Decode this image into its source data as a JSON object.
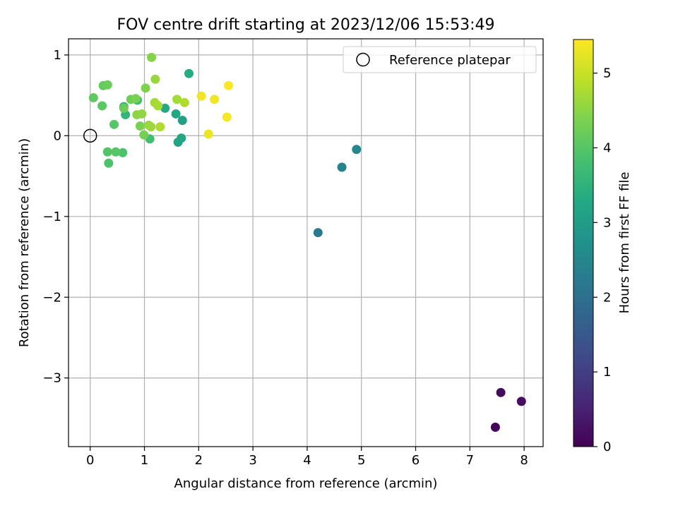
{
  "chart_data": {
    "type": "scatter",
    "title": "FOV centre drift starting at 2023/12/06 15:53:49",
    "xlabel": "Angular distance from reference (arcmin)",
    "ylabel": "Rotation from reference (arcmin)",
    "xlim": [
      -0.4,
      8.35
    ],
    "ylim": [
      -3.85,
      1.2
    ],
    "xticks": [
      0,
      1,
      2,
      3,
      4,
      5,
      6,
      7,
      8
    ],
    "yticks": [
      1,
      0,
      -1,
      -2,
      -3
    ],
    "xtick_labels": [
      "0",
      "1",
      "2",
      "3",
      "4",
      "5",
      "6",
      "7",
      "8"
    ],
    "ytick_labels": [
      "1",
      "0",
      "−1",
      "−2",
      "−3"
    ],
    "grid": true,
    "legend": {
      "position": "top-right",
      "entries": [
        "Reference platepar"
      ]
    },
    "reference_point": {
      "x": 0,
      "y": 0
    },
    "colorbar": {
      "label": "Hours from first FF file",
      "colormap": "viridis",
      "range": [
        0,
        5.45
      ],
      "ticks": [
        0,
        1,
        2,
        3,
        4,
        5
      ],
      "tick_labels": [
        "0",
        "1",
        "2",
        "3",
        "4",
        "5"
      ]
    },
    "points": [
      {
        "x": 7.47,
        "y": -3.61,
        "c": 0.1
      },
      {
        "x": 7.57,
        "y": -3.18,
        "c": 0.15
      },
      {
        "x": 7.95,
        "y": -3.29,
        "c": 0.2
      },
      {
        "x": 4.2,
        "y": -1.2,
        "c": 2.2
      },
      {
        "x": 4.64,
        "y": -0.39,
        "c": 2.4
      },
      {
        "x": 4.91,
        "y": -0.17,
        "c": 2.5
      },
      {
        "x": 1.62,
        "y": -0.08,
        "c": 3.15
      },
      {
        "x": 1.68,
        "y": -0.03,
        "c": 3.2
      },
      {
        "x": 1.7,
        "y": 0.19,
        "c": 3.1
      },
      {
        "x": 1.58,
        "y": 0.27,
        "c": 3.25
      },
      {
        "x": 1.38,
        "y": 0.34,
        "c": 3.3
      },
      {
        "x": 1.82,
        "y": 0.77,
        "c": 3.35
      },
      {
        "x": 0.62,
        "y": 0.36,
        "c": 3.6
      },
      {
        "x": 0.65,
        "y": 0.26,
        "c": 3.55
      },
      {
        "x": 0.87,
        "y": 0.44,
        "c": 3.7
      },
      {
        "x": 1.1,
        "y": -0.04,
        "c": 3.8
      },
      {
        "x": 0.34,
        "y": -0.34,
        "c": 3.9
      },
      {
        "x": 0.32,
        "y": -0.2,
        "c": 3.95
      },
      {
        "x": 0.6,
        "y": -0.21,
        "c": 3.9
      },
      {
        "x": 0.47,
        "y": -0.2,
        "c": 4.0
      },
      {
        "x": 0.44,
        "y": 0.14,
        "c": 4.0
      },
      {
        "x": 0.22,
        "y": 0.37,
        "c": 4.05
      },
      {
        "x": 0.06,
        "y": 0.47,
        "c": 4.1
      },
      {
        "x": 0.24,
        "y": 0.62,
        "c": 4.15
      },
      {
        "x": 0.32,
        "y": 0.63,
        "c": 4.2
      },
      {
        "x": 0.62,
        "y": 0.34,
        "c": 4.2
      },
      {
        "x": 0.75,
        "y": 0.45,
        "c": 4.25
      },
      {
        "x": 0.99,
        "y": 0.01,
        "c": 4.3
      },
      {
        "x": 0.92,
        "y": 0.12,
        "c": 4.35
      },
      {
        "x": 0.84,
        "y": 0.46,
        "c": 4.35
      },
      {
        "x": 1.02,
        "y": 0.59,
        "c": 4.4
      },
      {
        "x": 1.13,
        "y": 0.97,
        "c": 4.45
      },
      {
        "x": 0.86,
        "y": 0.26,
        "c": 4.5
      },
      {
        "x": 0.95,
        "y": 0.27,
        "c": 4.55
      },
      {
        "x": 1.08,
        "y": 0.13,
        "c": 4.6
      },
      {
        "x": 1.12,
        "y": 0.11,
        "c": 4.65
      },
      {
        "x": 1.2,
        "y": 0.7,
        "c": 4.6
      },
      {
        "x": 1.19,
        "y": 0.41,
        "c": 4.7
      },
      {
        "x": 1.25,
        "y": 0.37,
        "c": 4.75
      },
      {
        "x": 1.29,
        "y": 0.11,
        "c": 4.8
      },
      {
        "x": 1.6,
        "y": 0.45,
        "c": 4.7
      },
      {
        "x": 1.74,
        "y": 0.41,
        "c": 4.8
      },
      {
        "x": 2.05,
        "y": 0.49,
        "c": 5.35
      },
      {
        "x": 2.18,
        "y": 0.02,
        "c": 5.3
      },
      {
        "x": 2.29,
        "y": 0.45,
        "c": 5.35
      },
      {
        "x": 2.52,
        "y": 0.23,
        "c": 5.4
      },
      {
        "x": 2.55,
        "y": 0.62,
        "c": 5.45
      }
    ]
  }
}
